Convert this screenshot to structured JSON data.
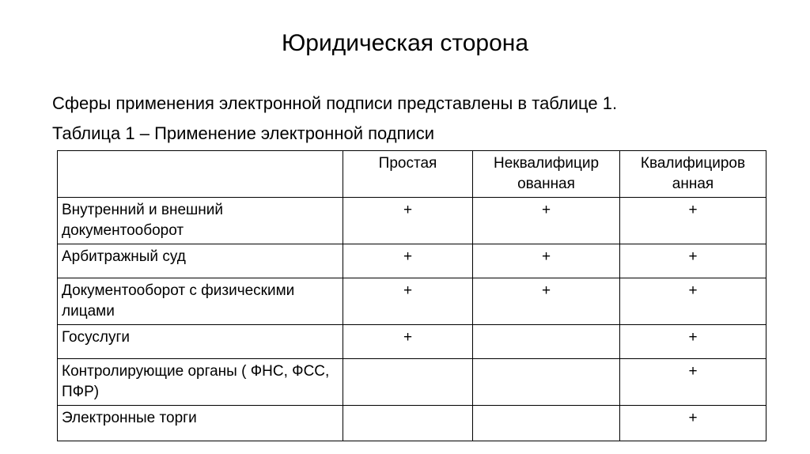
{
  "title": "Юридическая сторона",
  "intro": "Сферы применения электронной подписи представлены в таблице 1.",
  "caption": "Таблица 1 – Применение электронной подписи",
  "headers": [
    "",
    "Простая",
    "Неквалифицир ованная",
    "Квалифициров анная"
  ],
  "rows": [
    [
      "Внутренний и внешний документооборот",
      "+",
      "+",
      "+"
    ],
    [
      "Арбитражный суд",
      "+",
      "+",
      "+"
    ],
    [
      "Документооборот с физическими лицами",
      "+",
      "+",
      "+"
    ],
    [
      "Госуслуги",
      "+",
      "",
      "+"
    ],
    [
      "Контролирующие органы ( ФНС, ФСС, ПФР)",
      "",
      "",
      "+"
    ],
    [
      "Электронные торги",
      "",
      "",
      "+"
    ]
  ]
}
